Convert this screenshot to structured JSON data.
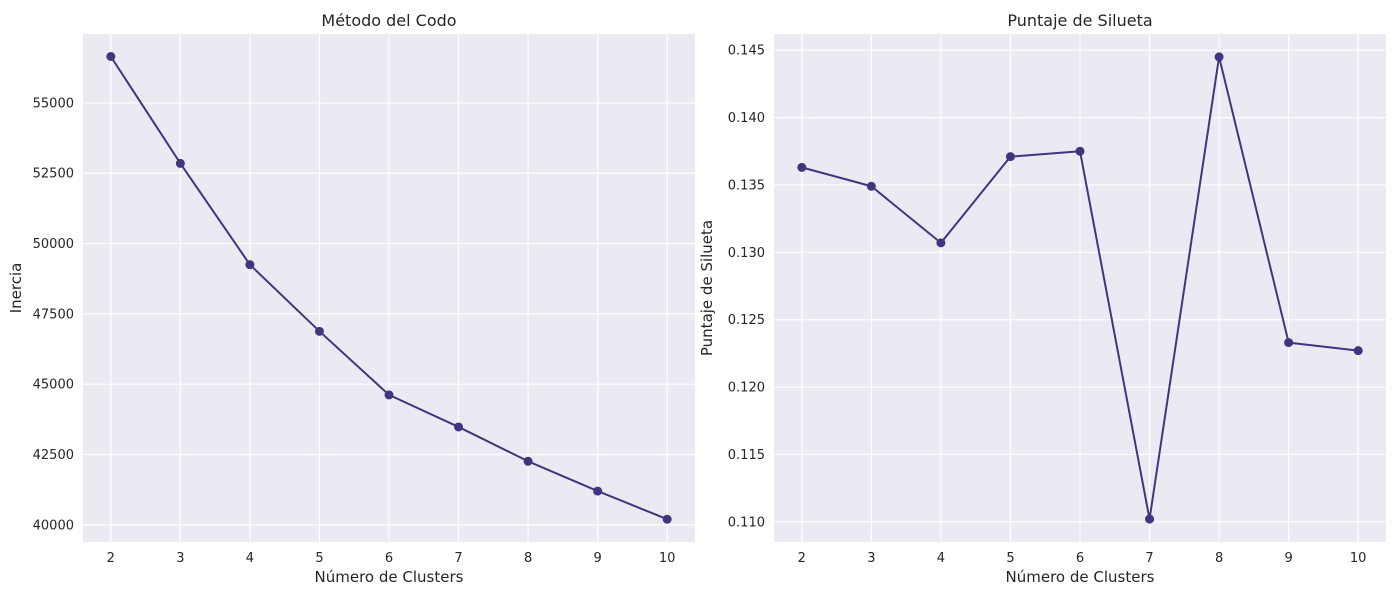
{
  "chart_data": [
    {
      "type": "line",
      "title": "Método del Codo",
      "xlabel": "Número de Clusters",
      "ylabel": "Inercia",
      "x": [
        2,
        3,
        4,
        5,
        6,
        7,
        8,
        9,
        10
      ],
      "x_ticks": [
        "2",
        "3",
        "4",
        "5",
        "6",
        "7",
        "8",
        "9",
        "10"
      ],
      "xlim": [
        1.6,
        10.4
      ],
      "y_ticks": [
        40000,
        42500,
        45000,
        47500,
        50000,
        52500,
        55000
      ],
      "y_tick_labels": [
        "40000",
        "42500",
        "45000",
        "47500",
        "50000",
        "52500",
        "55000"
      ],
      "ylim": [
        39390,
        57450
      ],
      "grid": true,
      "series": [
        {
          "values": [
            56650,
            52850,
            49250,
            46880,
            44620,
            43480,
            42260,
            41200,
            40200
          ],
          "color": "#43347e",
          "marker": "circle"
        }
      ]
    },
    {
      "type": "line",
      "title": "Puntaje de Silueta",
      "xlabel": "Número de Clusters",
      "ylabel": "Puntaje de Silueta",
      "x": [
        2,
        3,
        4,
        5,
        6,
        7,
        8,
        9,
        10
      ],
      "x_ticks": [
        "2",
        "3",
        "4",
        "5",
        "6",
        "7",
        "8",
        "9",
        "10"
      ],
      "xlim": [
        1.6,
        10.4
      ],
      "y_ticks": [
        0.11,
        0.115,
        0.12,
        0.125,
        0.13,
        0.135,
        0.14,
        0.145
      ],
      "y_tick_labels": [
        "0.110",
        "0.115",
        "0.120",
        "0.125",
        "0.130",
        "0.135",
        "0.140",
        "0.145"
      ],
      "ylim": [
        0.1085,
        0.1462
      ],
      "grid": true,
      "series": [
        {
          "values": [
            0.1363,
            0.1349,
            0.1307,
            0.1371,
            0.1375,
            0.1102,
            0.1445,
            0.1233,
            0.1227
          ],
          "color": "#43347e",
          "marker": "circle"
        }
      ]
    }
  ]
}
